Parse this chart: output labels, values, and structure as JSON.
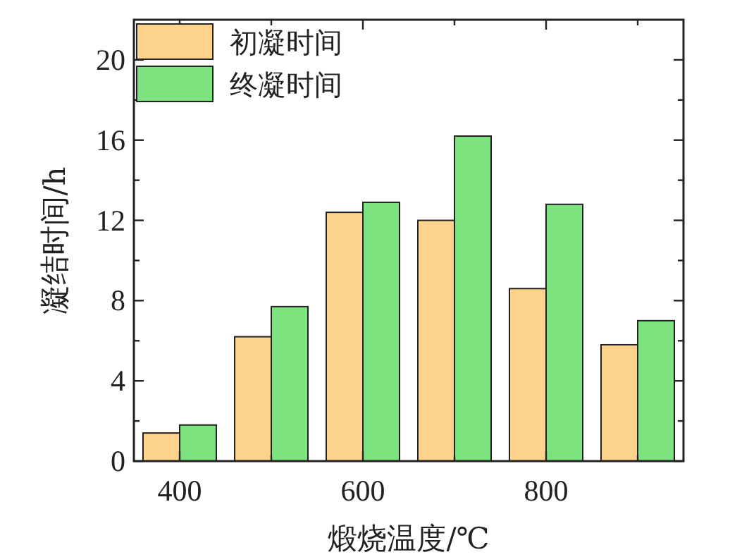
{
  "chart_data": {
    "type": "bar",
    "xlabel": "煅烧温度/℃",
    "ylabel": "凝结时间/h",
    "x": [
      400,
      500,
      600,
      700,
      800,
      900
    ],
    "series": [
      {
        "name": "初凝时间",
        "color": "#fdd28a",
        "values": [
          1.4,
          6.2,
          12.4,
          12.0,
          8.6,
          5.8
        ]
      },
      {
        "name": "终凝时间",
        "color": "#7de37f",
        "values": [
          1.8,
          7.7,
          12.9,
          16.2,
          12.8,
          7.0
        ]
      }
    ],
    "xlim": [
      350,
      950
    ],
    "xticks": [
      400,
      {
        "value": 500,
        "label": null
      },
      600,
      {
        "value": 700,
        "label": null
      },
      800,
      {
        "value": 900,
        "label": null
      }
    ],
    "ylim": [
      0,
      22
    ],
    "yticks": [
      0,
      {
        "value": 2,
        "label": null
      },
      4,
      {
        "value": 6,
        "label": null
      },
      8,
      {
        "value": 10,
        "label": null
      },
      12,
      {
        "value": 14,
        "label": null
      },
      16,
      {
        "value": 18,
        "label": null
      },
      20
    ],
    "legend": "top left"
  }
}
